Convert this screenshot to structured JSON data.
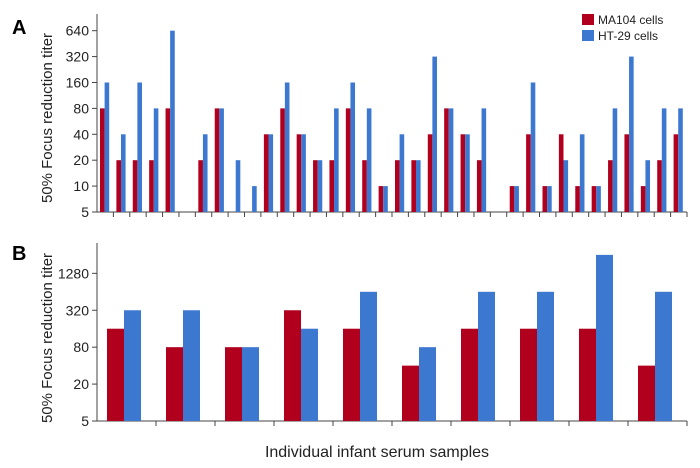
{
  "colors": {
    "ma104": "#b0001e",
    "ht29": "#3d78d0",
    "axis": "#444444"
  },
  "legend": {
    "ma104": "MA104 cells",
    "ht29": "HT-29 cells"
  },
  "xlabel": "Individual infant serum samples",
  "chart_data": [
    {
      "type": "bar",
      "panel": "A",
      "ylabel": "50% Focus reduction titer",
      "yscale": "log2",
      "ylim": [
        5,
        1000
      ],
      "yticks": [
        "5",
        "10",
        "20",
        "40",
        "80",
        "160",
        "320",
        "640"
      ],
      "legend_position": "top-right",
      "series": [
        {
          "name": "MA104 cells",
          "values": [
            80,
            20,
            20,
            20,
            80,
            null,
            20,
            80,
            null,
            null,
            40,
            80,
            40,
            20,
            20,
            80,
            20,
            10,
            20,
            20,
            40,
            80,
            40,
            20,
            null,
            10,
            40,
            10,
            40,
            10,
            10,
            20,
            40,
            10,
            20,
            40
          ]
        },
        {
          "name": "HT-29 cells",
          "values": [
            160,
            40,
            160,
            80,
            640,
            null,
            40,
            80,
            20,
            10,
            40,
            160,
            40,
            20,
            80,
            160,
            80,
            10,
            40,
            20,
            320,
            80,
            40,
            80,
            null,
            10,
            160,
            10,
            20,
            40,
            10,
            80,
            320,
            20,
            80,
            80
          ]
        }
      ]
    },
    {
      "type": "bar",
      "panel": "B",
      "ylabel": "50% Focus reduction titer",
      "yscale": "log4",
      "ylim": [
        5,
        4000
      ],
      "yticks": [
        "5",
        "20",
        "80",
        "320",
        "1280"
      ],
      "series": [
        {
          "name": "MA104 cells",
          "values": [
            160,
            80,
            80,
            320,
            160,
            40,
            160,
            160,
            160,
            40
          ]
        },
        {
          "name": "HT-29 cells",
          "values": [
            320,
            320,
            80,
            160,
            640,
            80,
            640,
            640,
            2560,
            640
          ]
        }
      ]
    }
  ]
}
